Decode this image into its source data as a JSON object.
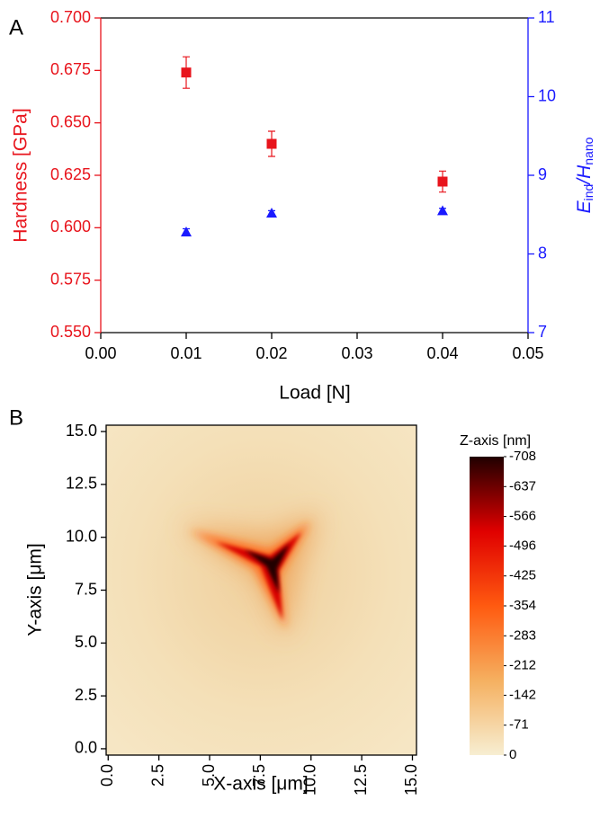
{
  "chart_data": [
    {
      "type": "scatter",
      "panel_label": "A",
      "xlabel": "Load [N]",
      "ylabel": "Hardness [GPa]",
      "y2label": [
        "E",
        "ind",
        "/H",
        "nano"
      ],
      "xlim": [
        0,
        0.05
      ],
      "xticks": [
        {
          "value": 0,
          "label": "0.00"
        },
        {
          "value": 0.01,
          "label": "0.01"
        },
        {
          "value": 0.02,
          "label": "0.02"
        },
        {
          "value": 0.03,
          "label": "0.03"
        },
        {
          "value": 0.04,
          "label": "0.04"
        },
        {
          "value": 0.05,
          "label": "0.05"
        }
      ],
      "ylim": [
        0.55,
        0.7
      ],
      "yticks": [
        {
          "value": 0.55,
          "label": "0.550"
        },
        {
          "value": 0.575,
          "label": "0.575"
        },
        {
          "value": 0.6,
          "label": "0.600"
        },
        {
          "value": 0.625,
          "label": "0.625"
        },
        {
          "value": 0.65,
          "label": "0.650"
        },
        {
          "value": 0.675,
          "label": "0.675"
        },
        {
          "value": 0.7,
          "label": "0.700"
        }
      ],
      "y2lim": [
        7,
        11
      ],
      "y2ticks": [
        7,
        8,
        9,
        10,
        11
      ],
      "ycolor": "#e8141c",
      "y2color": "#1a1aff",
      "series": [
        {
          "color": "#e8141c",
          "marker": "square",
          "x": [
            0.01,
            0.02,
            0.04
          ],
          "values": [
            0.674,
            0.64,
            0.622
          ],
          "errors": [
            0.0075,
            0.006,
            0.005
          ]
        },
        {
          "color": "#1a1aff",
          "marker": "triangle",
          "axis": "y2",
          "x": [
            0.01,
            0.02,
            0.04
          ],
          "values": [
            8.28,
            8.52,
            8.55
          ],
          "errors": [
            0.04,
            0.03,
            0.03
          ]
        }
      ]
    },
    {
      "type": "heatmap",
      "panel_label": "B",
      "xlabel": "X-axis [μm]",
      "ylabel": "Y-axis [μm]",
      "colorbar_label": "Z-axis [nm]",
      "xlim": [
        -0.1,
        15.2
      ],
      "xticks": [
        {
          "value": 0,
          "label": "0.0"
        },
        {
          "value": 2.5,
          "label": "2.5"
        },
        {
          "value": 5,
          "label": "5.0"
        },
        {
          "value": 7.5,
          "label": "7.5"
        },
        {
          "value": 10,
          "label": "10.0"
        },
        {
          "value": 12.5,
          "label": "12.5"
        },
        {
          "value": 15,
          "label": "15.0"
        }
      ],
      "ylim": [
        -0.3,
        15.3
      ],
      "yticks": [
        {
          "value": 0,
          "label": "0.0"
        },
        {
          "value": 2.5,
          "label": "2.5"
        },
        {
          "value": 5,
          "label": "5.0"
        },
        {
          "value": 7.5,
          "label": "7.5"
        },
        {
          "value": 10,
          "label": "10.0"
        },
        {
          "value": 12.5,
          "label": "12.5"
        },
        {
          "value": 15,
          "label": "15.0"
        }
      ],
      "zlim": [
        0,
        -708
      ],
      "zticks": [
        -708,
        -637,
        -566,
        -496,
        -425,
        -354,
        -283,
        -212,
        -142,
        -71,
        0
      ],
      "colormap": [
        "#f7eed2",
        "#f5b060",
        "#ff5a10",
        "#e00000",
        "#200000"
      ]
    }
  ]
}
